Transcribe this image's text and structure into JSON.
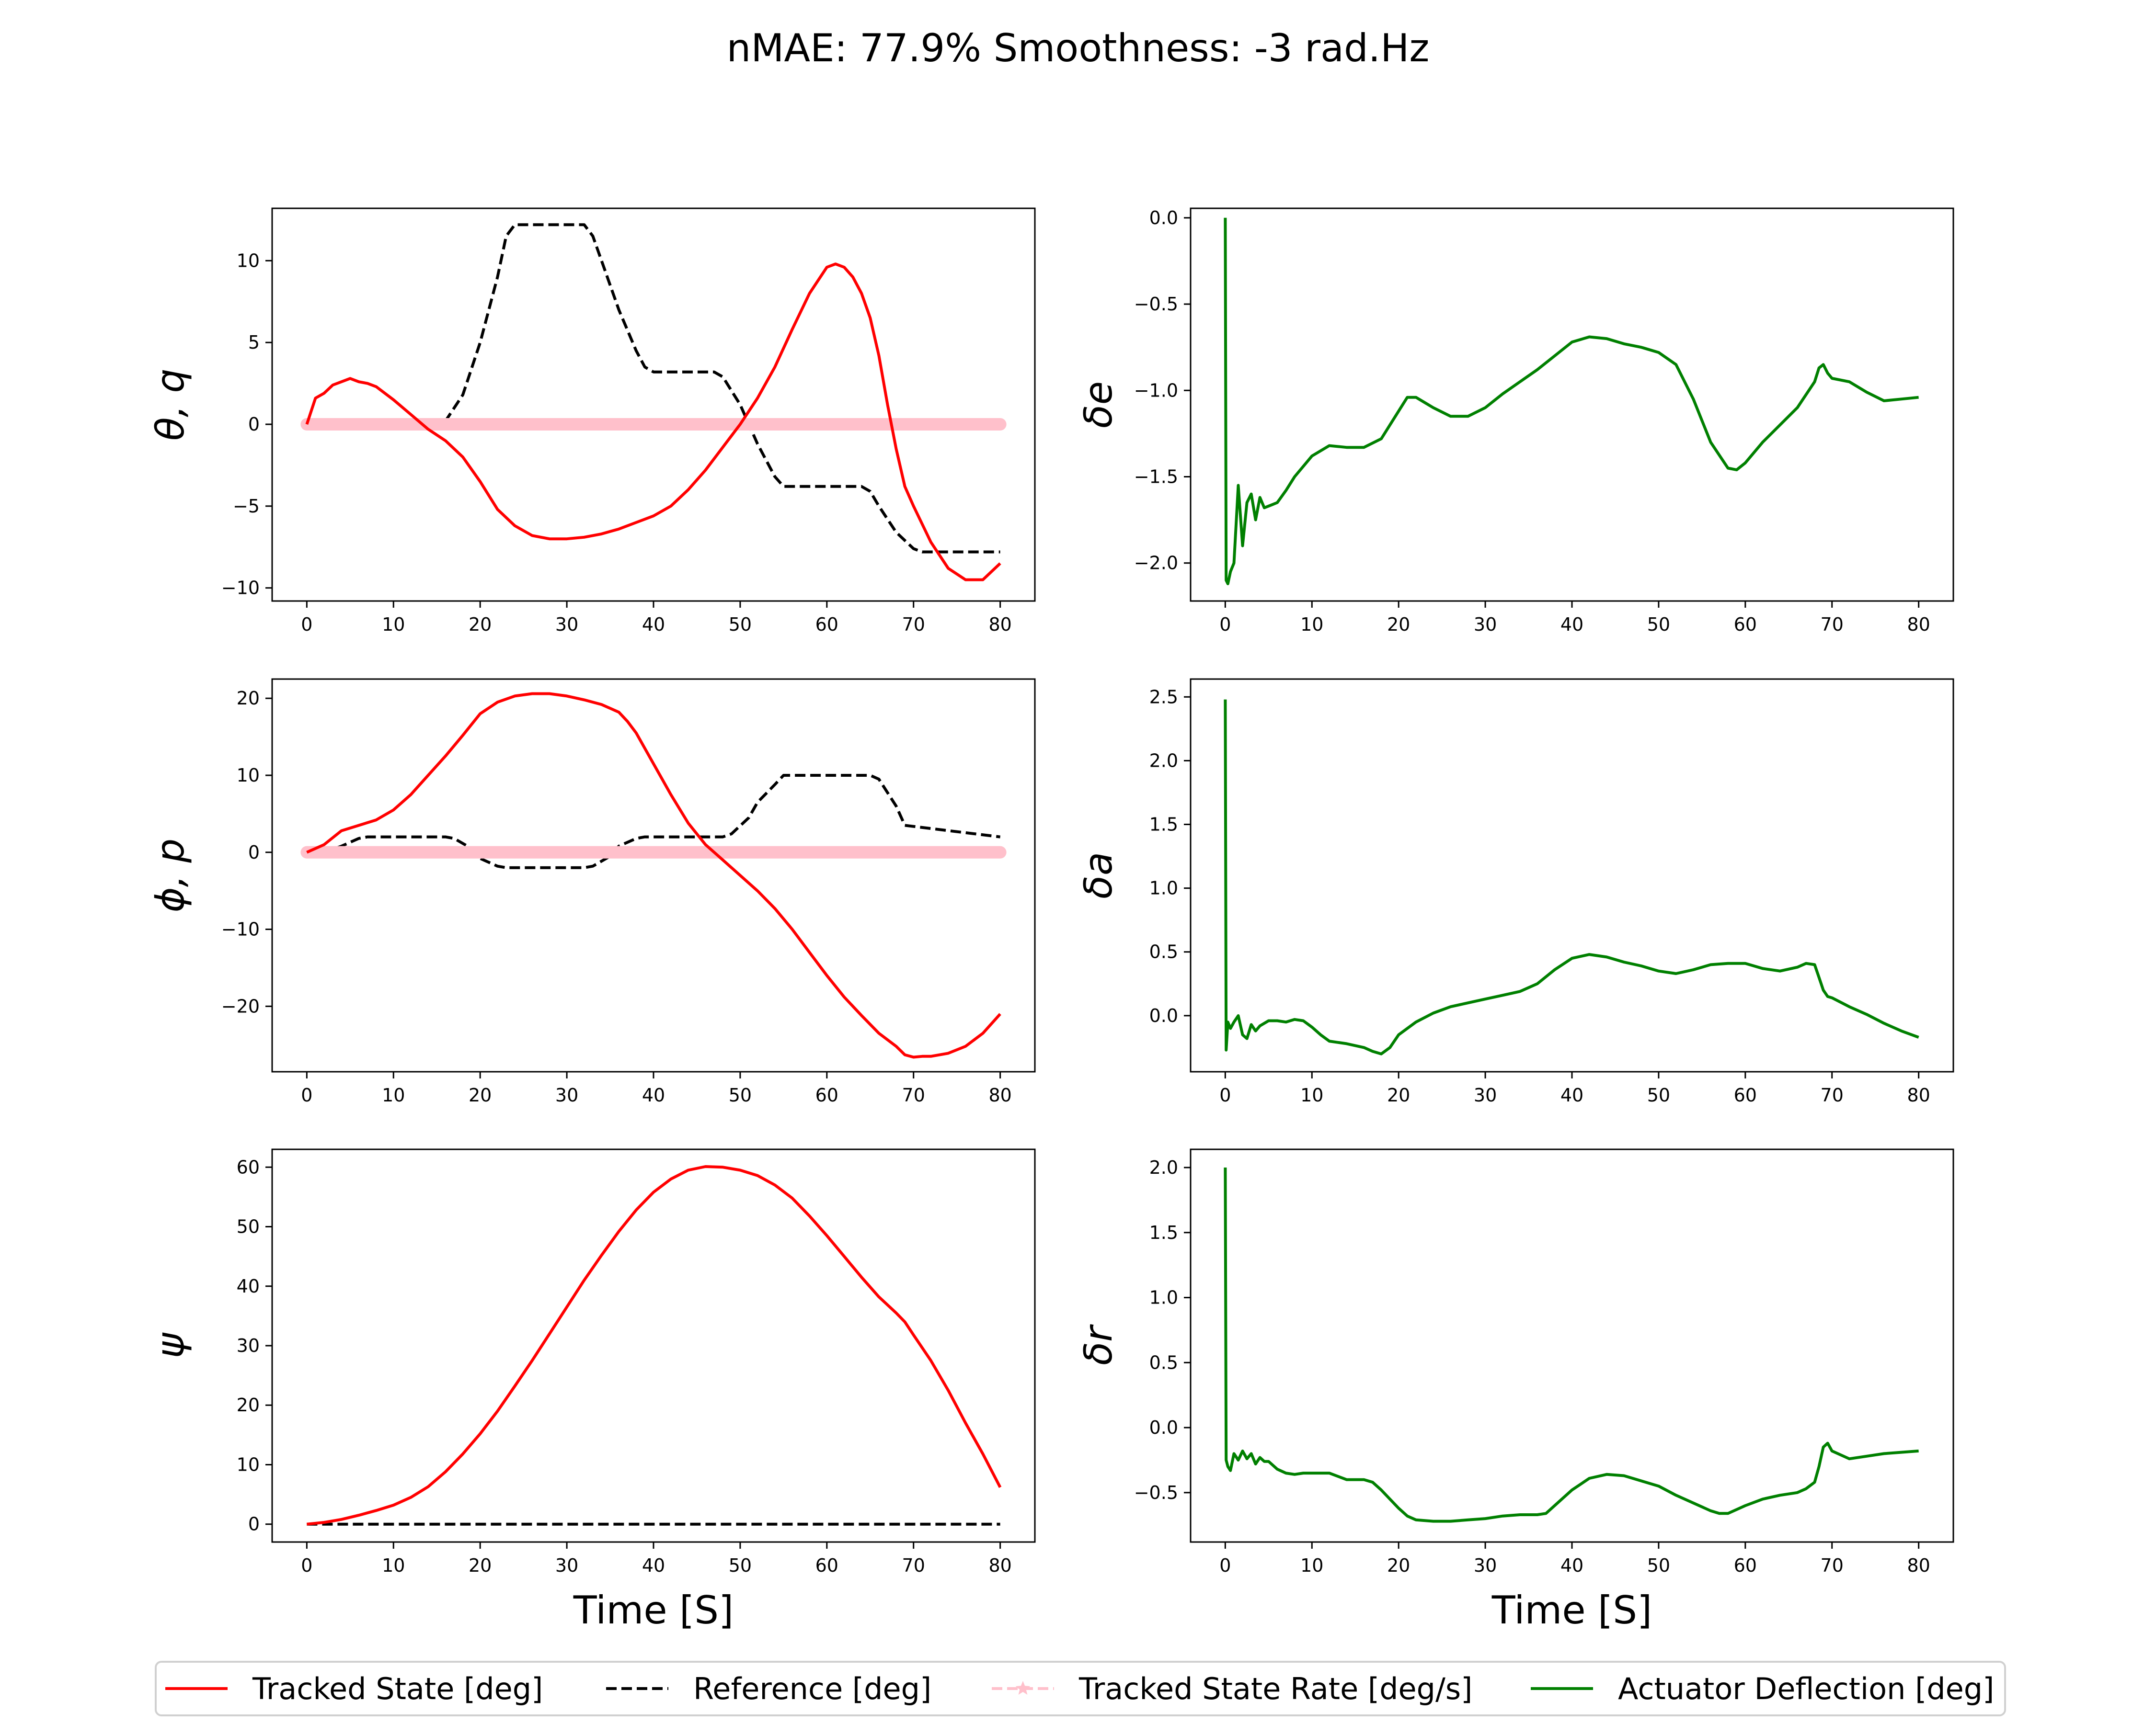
{
  "figure": {
    "title": "nMAE: 77.9% Smoothness: -3 rad.Hz"
  },
  "legend": {
    "placement": "bottom-center",
    "items": [
      {
        "label": "Tracked State [deg]",
        "color": "#ff0000",
        "style": "solid"
      },
      {
        "label": "Reference [deg]",
        "color": "#000000",
        "style": "dashed"
      },
      {
        "label": "Tracked State Rate [deg/s]",
        "color": "#ffc0cb",
        "style": "dashed-star"
      },
      {
        "label": "Actuator Deflection [deg]",
        "color": "#008000",
        "style": "solid"
      }
    ]
  },
  "chart_data": [
    {
      "type": "line",
      "ylabel": "θ, q",
      "xlabel": "",
      "xlim": [
        -4,
        84
      ],
      "ylim": [
        -10.8,
        13.2
      ],
      "xticks": [
        0,
        10,
        20,
        30,
        40,
        50,
        60,
        70,
        80
      ],
      "yticks": [
        -10,
        -5,
        0,
        5,
        10
      ],
      "series": [
        {
          "role": "tracked",
          "color": "#ff0000",
          "x": [
            0,
            1,
            2,
            3,
            4,
            5,
            6,
            7,
            8,
            10,
            12,
            14,
            16,
            18,
            20,
            22,
            24,
            26,
            28,
            30,
            32,
            34,
            36,
            38,
            40,
            42,
            44,
            46,
            48,
            50,
            52,
            54,
            56,
            58,
            60,
            61,
            62,
            63,
            64,
            65,
            66,
            67,
            68,
            69,
            70,
            72,
            74,
            76,
            78,
            80
          ],
          "y": [
            0,
            1.6,
            1.9,
            2.4,
            2.6,
            2.8,
            2.6,
            2.5,
            2.3,
            1.5,
            0.6,
            -0.3,
            -1.0,
            -2.0,
            -3.5,
            -5.2,
            -6.2,
            -6.8,
            -7.0,
            -7.0,
            -6.9,
            -6.7,
            -6.4,
            -6.0,
            -5.6,
            -5.0,
            -4.0,
            -2.8,
            -1.4,
            0,
            1.6,
            3.5,
            5.8,
            8.0,
            9.6,
            9.8,
            9.6,
            9.0,
            8.0,
            6.5,
            4.2,
            1.2,
            -1.5,
            -3.8,
            -5.0,
            -7.2,
            -8.8,
            -9.5,
            -9.5,
            -8.5
          ]
        },
        {
          "role": "reference",
          "color": "#000000",
          "dash": true,
          "x": [
            0,
            15,
            16,
            18,
            20,
            22,
            23,
            24,
            32,
            33,
            34,
            36,
            38,
            39,
            40,
            41,
            47,
            48,
            50,
            52,
            54,
            55,
            64,
            65,
            66,
            68,
            70,
            71,
            80
          ],
          "y": [
            0,
            0,
            0.2,
            1.8,
            5.0,
            9.0,
            11.5,
            12.2,
            12.2,
            11.5,
            10.0,
            7.0,
            4.5,
            3.5,
            3.2,
            3.2,
            3.2,
            2.9,
            1.2,
            -1.2,
            -3.2,
            -3.8,
            -3.8,
            -4.1,
            -5.0,
            -6.6,
            -7.6,
            -7.8,
            -7.8
          ]
        },
        {
          "role": "rate",
          "color": "#ffc0cb",
          "x": [
            0,
            80
          ],
          "y": [
            0,
            0
          ]
        }
      ]
    },
    {
      "type": "line",
      "ylabel": "δe",
      "xlabel": "",
      "xlim": [
        -4,
        84
      ],
      "ylim": [
        -2.22,
        0.055
      ],
      "xticks": [
        0,
        10,
        20,
        30,
        40,
        50,
        60,
        70,
        80
      ],
      "yticks": [
        -2.0,
        -1.5,
        -1.0,
        -0.5,
        0.0
      ],
      "series": [
        {
          "role": "actuator",
          "color": "#008000",
          "x": [
            0,
            0.1,
            0.3,
            0.6,
            1,
            1.5,
            2,
            2.5,
            3,
            3.5,
            4,
            4.5,
            5,
            5.5,
            6,
            7,
            8,
            10,
            12,
            14,
            16,
            18,
            20,
            21,
            22,
            23,
            24,
            26,
            28,
            30,
            32,
            34,
            36,
            38,
            40,
            42,
            44,
            46,
            48,
            50,
            52,
            54,
            56,
            58,
            59,
            60,
            62,
            64,
            66,
            68,
            68.5,
            69,
            69.5,
            70,
            72,
            74,
            76,
            78,
            80
          ],
          "y": [
            0,
            -2.1,
            -2.12,
            -2.05,
            -2.0,
            -1.55,
            -1.9,
            -1.65,
            -1.6,
            -1.75,
            -1.62,
            -1.68,
            -1.67,
            -1.66,
            -1.65,
            -1.58,
            -1.5,
            -1.38,
            -1.32,
            -1.33,
            -1.33,
            -1.28,
            -1.12,
            -1.04,
            -1.04,
            -1.07,
            -1.1,
            -1.15,
            -1.15,
            -1.1,
            -1.02,
            -0.95,
            -0.88,
            -0.8,
            -0.72,
            -0.69,
            -0.7,
            -0.73,
            -0.75,
            -0.78,
            -0.85,
            -1.05,
            -1.3,
            -1.45,
            -1.46,
            -1.42,
            -1.3,
            -1.2,
            -1.1,
            -0.95,
            -0.87,
            -0.85,
            -0.9,
            -0.93,
            -0.95,
            -1.01,
            -1.06,
            -1.05,
            -1.04
          ]
        }
      ]
    },
    {
      "type": "line",
      "ylabel": "ϕ, p",
      "xlabel": "",
      "xlim": [
        -4,
        84
      ],
      "ylim": [
        -28.5,
        22.5
      ],
      "xticks": [
        0,
        10,
        20,
        30,
        40,
        50,
        60,
        70,
        80
      ],
      "yticks": [
        -20,
        -10,
        0,
        10,
        20
      ],
      "series": [
        {
          "role": "tracked",
          "color": "#ff0000",
          "x": [
            0,
            2,
            4,
            6,
            8,
            10,
            12,
            14,
            16,
            18,
            20,
            22,
            24,
            26,
            28,
            30,
            32,
            34,
            36,
            37,
            38,
            40,
            42,
            44,
            46,
            48,
            50,
            52,
            54,
            56,
            58,
            60,
            62,
            64,
            66,
            68,
            69,
            70,
            71,
            72,
            74,
            76,
            78,
            80
          ],
          "y": [
            0,
            1.0,
            2.8,
            3.5,
            4.2,
            5.5,
            7.5,
            10.0,
            12.5,
            15.2,
            18.0,
            19.5,
            20.3,
            20.6,
            20.6,
            20.3,
            19.8,
            19.2,
            18.2,
            17.0,
            15.5,
            11.5,
            7.5,
            3.8,
            1.0,
            -1.0,
            -3.0,
            -5.0,
            -7.3,
            -10.0,
            -13.0,
            -16.0,
            -18.8,
            -21.2,
            -23.5,
            -25.2,
            -26.3,
            -26.6,
            -26.5,
            -26.5,
            -26.1,
            -25.2,
            -23.5,
            -21.0
          ]
        },
        {
          "role": "reference",
          "color": "#000000",
          "dash": true,
          "x": [
            0,
            2,
            4,
            6,
            7,
            16,
            17,
            19,
            20,
            22,
            23,
            32,
            33,
            35,
            36,
            38,
            39,
            48,
            49,
            51,
            52,
            54,
            55,
            65,
            66,
            68,
            69,
            80
          ],
          "y": [
            0,
            0,
            0.8,
            1.8,
            2.0,
            2.0,
            1.8,
            0.5,
            -0.8,
            -1.8,
            -2.0,
            -2.0,
            -1.8,
            -0.5,
            0.8,
            1.8,
            2.0,
            2.0,
            2.4,
            4.5,
            6.5,
            8.8,
            10.0,
            10.0,
            9.5,
            6.0,
            3.5,
            2.0
          ]
        },
        {
          "role": "rate",
          "color": "#ffc0cb",
          "x": [
            0,
            80
          ],
          "y": [
            0,
            0
          ]
        }
      ]
    },
    {
      "type": "line",
      "ylabel": "δa",
      "xlabel": "",
      "xlim": [
        -4,
        84
      ],
      "ylim": [
        -0.44,
        2.64
      ],
      "xticks": [
        0,
        10,
        20,
        30,
        40,
        50,
        60,
        70,
        80
      ],
      "yticks": [
        0.0,
        0.5,
        1.0,
        1.5,
        2.0,
        2.5
      ],
      "series": [
        {
          "role": "actuator",
          "color": "#008000",
          "x": [
            0,
            0.1,
            0.3,
            0.6,
            1,
            1.5,
            2,
            2.5,
            3,
            3.5,
            4,
            5,
            6,
            7,
            8,
            9,
            10,
            11,
            12,
            14,
            16,
            17,
            18,
            19,
            20,
            22,
            24,
            26,
            28,
            30,
            32,
            34,
            36,
            38,
            40,
            42,
            44,
            46,
            48,
            50,
            52,
            54,
            56,
            58,
            60,
            62,
            64,
            66,
            67,
            68,
            68.5,
            69,
            69.5,
            70,
            72,
            74,
            76,
            78,
            80
          ],
          "y": [
            2.48,
            -0.27,
            -0.05,
            -0.1,
            -0.05,
            0,
            -0.15,
            -0.18,
            -0.07,
            -0.12,
            -0.08,
            -0.04,
            -0.04,
            -0.05,
            -0.03,
            -0.04,
            -0.09,
            -0.15,
            -0.2,
            -0.22,
            -0.25,
            -0.28,
            -0.3,
            -0.25,
            -0.15,
            -0.05,
            0.02,
            0.07,
            0.1,
            0.13,
            0.16,
            0.19,
            0.25,
            0.36,
            0.45,
            0.48,
            0.46,
            0.42,
            0.39,
            0.35,
            0.33,
            0.36,
            0.4,
            0.41,
            0.41,
            0.37,
            0.35,
            0.38,
            0.41,
            0.4,
            0.3,
            0.2,
            0.15,
            0.14,
            0.07,
            0.01,
            -0.06,
            -0.12,
            -0.17
          ]
        }
      ]
    },
    {
      "type": "line",
      "ylabel": "ψ",
      "xlabel": "Time [S]",
      "xlim": [
        -4,
        84
      ],
      "ylim": [
        -3,
        63
      ],
      "xticks": [
        0,
        10,
        20,
        30,
        40,
        50,
        60,
        70,
        80
      ],
      "yticks": [
        0,
        10,
        20,
        30,
        40,
        50,
        60
      ],
      "series": [
        {
          "role": "tracked",
          "color": "#ff0000",
          "x": [
            0,
            2,
            4,
            6,
            8,
            10,
            12,
            14,
            16,
            18,
            20,
            22,
            24,
            26,
            28,
            30,
            32,
            34,
            36,
            38,
            40,
            42,
            44,
            46,
            48,
            50,
            52,
            54,
            56,
            58,
            60,
            62,
            64,
            66,
            68,
            69,
            70,
            72,
            74,
            76,
            78,
            80
          ],
          "y": [
            0,
            0.3,
            0.8,
            1.5,
            2.3,
            3.2,
            4.5,
            6.3,
            8.8,
            11.8,
            15.2,
            19.0,
            23.2,
            27.5,
            32.0,
            36.5,
            41.0,
            45.2,
            49.2,
            52.8,
            55.8,
            58.0,
            59.5,
            60.1,
            60.0,
            59.5,
            58.6,
            57.0,
            54.8,
            51.8,
            48.5,
            45.0,
            41.5,
            38.2,
            35.5,
            34.0,
            31.8,
            27.5,
            22.5,
            17.0,
            11.8,
            6.2
          ]
        },
        {
          "role": "reference",
          "color": "#000000",
          "dash": true,
          "x": [
            0,
            80
          ],
          "y": [
            0,
            0
          ]
        }
      ]
    },
    {
      "type": "line",
      "ylabel": "δr",
      "xlabel": "Time [S]",
      "xlim": [
        -4,
        84
      ],
      "ylim": [
        -0.88,
        2.14
      ],
      "xticks": [
        0,
        10,
        20,
        30,
        40,
        50,
        60,
        70,
        80
      ],
      "yticks": [
        -0.5,
        0.0,
        0.5,
        1.0,
        1.5,
        2.0
      ],
      "series": [
        {
          "role": "actuator",
          "color": "#008000",
          "x": [
            0,
            0.1,
            0.3,
            0.6,
            1,
            1.5,
            2,
            2.5,
            3,
            3.5,
            4,
            4.5,
            5,
            6,
            7,
            8,
            9,
            10,
            12,
            14,
            16,
            17,
            18,
            19,
            20,
            21,
            22,
            24,
            26,
            28,
            30,
            32,
            34,
            36,
            37,
            38,
            40,
            42,
            44,
            46,
            48,
            50,
            52,
            54,
            56,
            57,
            58,
            60,
            62,
            64,
            66,
            67,
            68,
            68.5,
            69,
            69.5,
            70,
            72,
            74,
            76,
            78,
            80
          ],
          "y": [
            2.0,
            -0.25,
            -0.3,
            -0.33,
            -0.2,
            -0.25,
            -0.18,
            -0.24,
            -0.2,
            -0.28,
            -0.23,
            -0.26,
            -0.26,
            -0.32,
            -0.35,
            -0.36,
            -0.35,
            -0.35,
            -0.35,
            -0.4,
            -0.4,
            -0.42,
            -0.48,
            -0.55,
            -0.62,
            -0.68,
            -0.71,
            -0.72,
            -0.72,
            -0.71,
            -0.7,
            -0.68,
            -0.67,
            -0.67,
            -0.66,
            -0.6,
            -0.48,
            -0.39,
            -0.36,
            -0.37,
            -0.41,
            -0.45,
            -0.52,
            -0.58,
            -0.64,
            -0.66,
            -0.66,
            -0.6,
            -0.55,
            -0.52,
            -0.5,
            -0.47,
            -0.42,
            -0.3,
            -0.15,
            -0.12,
            -0.18,
            -0.24,
            -0.22,
            -0.2,
            -0.19,
            -0.18
          ]
        }
      ]
    }
  ]
}
